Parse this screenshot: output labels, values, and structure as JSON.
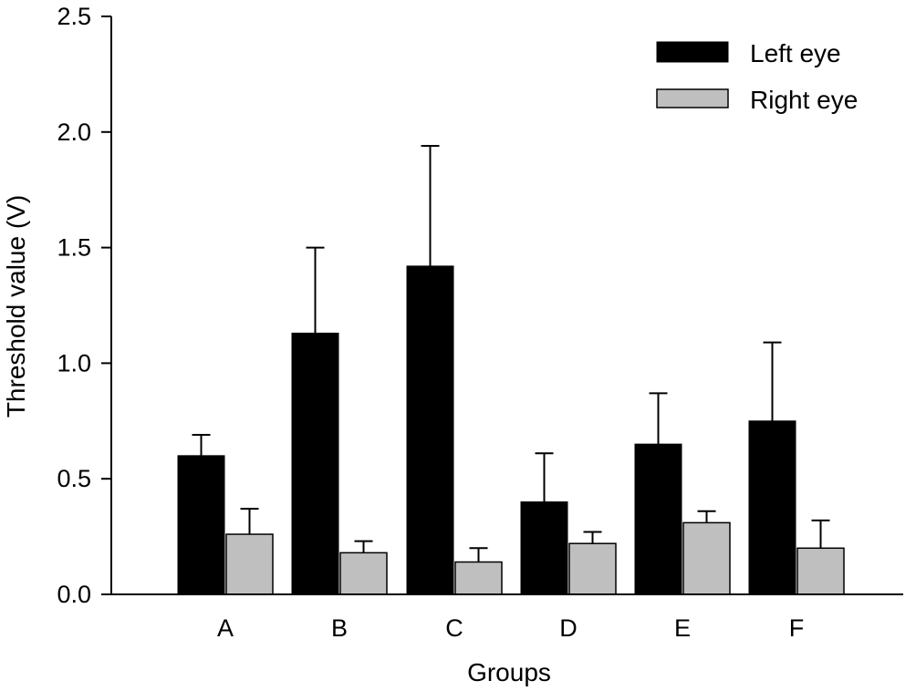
{
  "chart_data": {
    "type": "bar",
    "title": "",
    "xlabel": "Groups",
    "ylabel": "Threshold value (V)",
    "ylim": [
      0,
      2.5
    ],
    "yticks": [
      "0.0",
      "0.5",
      "1.0",
      "1.5",
      "2.0",
      "2.5"
    ],
    "categories": [
      "A",
      "B",
      "C",
      "D",
      "E",
      "F"
    ],
    "series": [
      {
        "name": "Left eye",
        "color": "#000000",
        "values": [
          0.6,
          1.13,
          1.42,
          0.4,
          0.65,
          0.75
        ],
        "errors": [
          0.09,
          0.37,
          0.52,
          0.21,
          0.22,
          0.34
        ]
      },
      {
        "name": "Right eye",
        "color": "#bfbfbf",
        "values": [
          0.26,
          0.18,
          0.14,
          0.22,
          0.31,
          0.2
        ],
        "errors": [
          0.11,
          0.05,
          0.06,
          0.05,
          0.05,
          0.12
        ]
      }
    ],
    "legend_position": "top-right",
    "grid": false
  }
}
